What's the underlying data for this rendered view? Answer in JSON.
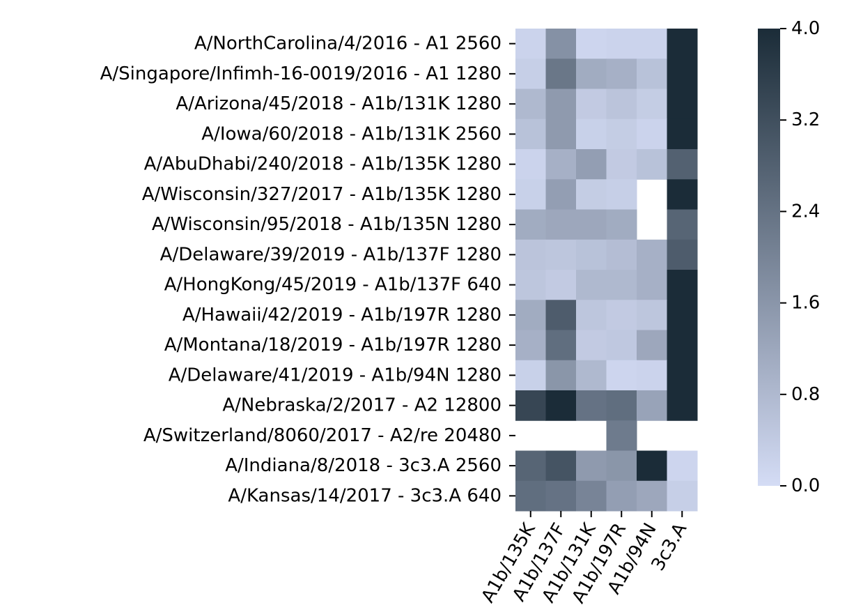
{
  "chart_data": {
    "type": "heatmap",
    "title": "",
    "xlabel": "",
    "ylabel": "",
    "x_categories": [
      "A1b/135K",
      "A1b/137F",
      "A1b/131K",
      "A1b/197R",
      "A1b/94N",
      "3c3.A"
    ],
    "y_categories": [
      "A/NorthCarolina/4/2016 - A1 2560",
      "A/Singapore/Infimh-16-0019/2016 - A1 1280",
      "A/Arizona/45/2018 - A1b/131K 1280",
      "A/Iowa/60/2018 - A1b/131K 2560",
      "A/AbuDhabi/240/2018 - A1b/135K 1280",
      "A/Wisconsin/327/2017 - A1b/135K 1280",
      "A/Wisconsin/95/2018 - A1b/135N 1280",
      "A/Delaware/39/2019 - A1b/137F 1280",
      "A/HongKong/45/2019 - A1b/137F  640",
      "A/Hawaii/42/2019 - A1b/197R 1280",
      "A/Montana/18/2019 - A1b/197R 1280",
      "A/Delaware/41/2019 - A1b/94N 1280",
      "A/Nebraska/2/2017 - A2 12800",
      "A/Switzerland/8060/2017 - A2/re 20480",
      "A/Indiana/8/2018 - 3c3.A 2560",
      "A/Kansas/14/2017 - 3c3.A  640"
    ],
    "values": [
      [
        0.2,
        1.7,
        0.15,
        0.2,
        0.2,
        4.0
      ],
      [
        0.3,
        2.3,
        1.1,
        1.0,
        0.6,
        4.0
      ],
      [
        0.8,
        1.5,
        0.4,
        0.55,
        0.35,
        4.0
      ],
      [
        0.6,
        1.5,
        0.25,
        0.35,
        0.2,
        4.0
      ],
      [
        0.2,
        1.0,
        1.4,
        0.4,
        0.6,
        2.8
      ],
      [
        0.25,
        1.4,
        0.35,
        0.3,
        null,
        4.0
      ],
      [
        1.1,
        1.2,
        1.2,
        1.1,
        null,
        2.7
      ],
      [
        0.55,
        0.5,
        0.6,
        0.7,
        1.0,
        2.9
      ],
      [
        0.5,
        0.4,
        0.8,
        0.8,
        1.0,
        4.0
      ],
      [
        1.1,
        2.9,
        0.5,
        0.4,
        0.5,
        4.0
      ],
      [
        1.0,
        2.5,
        0.4,
        0.45,
        1.2,
        4.0
      ],
      [
        0.25,
        1.6,
        0.8,
        0.15,
        0.2,
        4.0
      ],
      [
        3.4,
        4.0,
        2.4,
        2.5,
        1.3,
        4.0
      ],
      [
        null,
        null,
        null,
        2.2,
        null,
        null
      ],
      [
        2.7,
        3.1,
        1.5,
        1.6,
        4.0,
        0.15
      ],
      [
        2.5,
        2.4,
        2.0,
        1.4,
        1.2,
        0.3
      ]
    ],
    "vmin": 0.0,
    "vmax": 4.0,
    "colorbar": {
      "ticks": [
        0.0,
        0.8,
        1.6,
        2.4,
        3.2,
        4.0
      ],
      "tick_labels": [
        "0.0",
        "0.8",
        "1.6",
        "2.4",
        "3.2",
        "4.0"
      ],
      "color_low": "#d4dcf5",
      "color_high": "#1b2c38"
    },
    "missing_color": "#ffffff",
    "grid": false
  }
}
